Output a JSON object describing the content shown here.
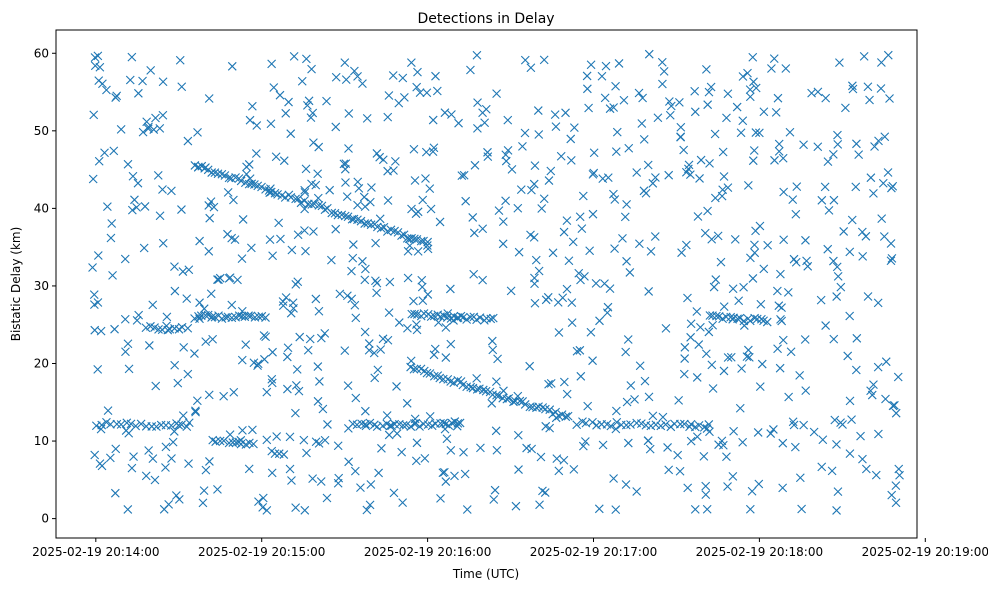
{
  "chart_data": {
    "type": "scatter",
    "title": "Detections in Delay",
    "xlabel": "Time (UTC)",
    "ylabel": "Bistatic Delay (km)",
    "marker": "x",
    "color": "#1f77b4",
    "x_units": "minutes since 2025-02-19 20:14:00",
    "xlim": [
      -0.24,
      4.95
    ],
    "ylim": [
      -2.5,
      63
    ],
    "x_ticks": [
      0,
      1,
      2,
      3,
      4,
      5
    ],
    "x_tick_labels": [
      "2025-02-19 20:14:00",
      "2025-02-19 20:15:00",
      "2025-02-19 20:16:00",
      "2025-02-19 20:17:00",
      "2025-02-19 20:18:00",
      "2025-02-19 20:19:00"
    ],
    "y_ticks": [
      0,
      10,
      20,
      30,
      40,
      50,
      60
    ],
    "y_tick_labels": [
      "0",
      "10",
      "20",
      "30",
      "40",
      "50",
      "60"
    ],
    "grid": false,
    "tracks": [
      {
        "name": "descending-upper",
        "x_start": 0.6,
        "x_end": 2.0,
        "y_start": 45.5,
        "y_end": 35.5,
        "step": 0.02
      },
      {
        "name": "descending-lower",
        "x_start": 1.9,
        "x_end": 2.85,
        "y_start": 19.5,
        "y_end": 13.0,
        "step": 0.02
      },
      {
        "name": "band-26-a",
        "x_start": 0.6,
        "x_end": 1.0,
        "y_start": 26.0,
        "y_end": 26.0,
        "step": 0.02
      },
      {
        "name": "band-26-b",
        "x_start": 1.9,
        "x_end": 2.4,
        "y_start": 26.3,
        "y_end": 25.7,
        "step": 0.02
      },
      {
        "name": "band-26-c",
        "x_start": 3.7,
        "x_end": 4.05,
        "y_start": 26.0,
        "y_end": 25.5,
        "step": 0.02
      },
      {
        "name": "band-12-a",
        "x_start": 0.0,
        "x_end": 0.55,
        "y_start": 12.2,
        "y_end": 12.0,
        "step": 0.03
      },
      {
        "name": "band-12-b",
        "x_start": 1.55,
        "x_end": 2.2,
        "y_start": 12.1,
        "y_end": 12.1,
        "step": 0.025
      },
      {
        "name": "band-12-c",
        "x_start": 2.9,
        "x_end": 3.7,
        "y_start": 12.3,
        "y_end": 11.9,
        "step": 0.03
      },
      {
        "name": "band-10",
        "x_start": 0.7,
        "x_end": 0.95,
        "y_start": 10.0,
        "y_end": 9.6,
        "step": 0.025
      },
      {
        "name": "band-24",
        "x_start": 0.3,
        "x_end": 0.55,
        "y_start": 24.6,
        "y_end": 24.6,
        "step": 0.025
      }
    ],
    "clutter": {
      "count": 900,
      "x_range": [
        -0.02,
        4.85
      ],
      "y_range": [
        1,
        60
      ]
    }
  }
}
